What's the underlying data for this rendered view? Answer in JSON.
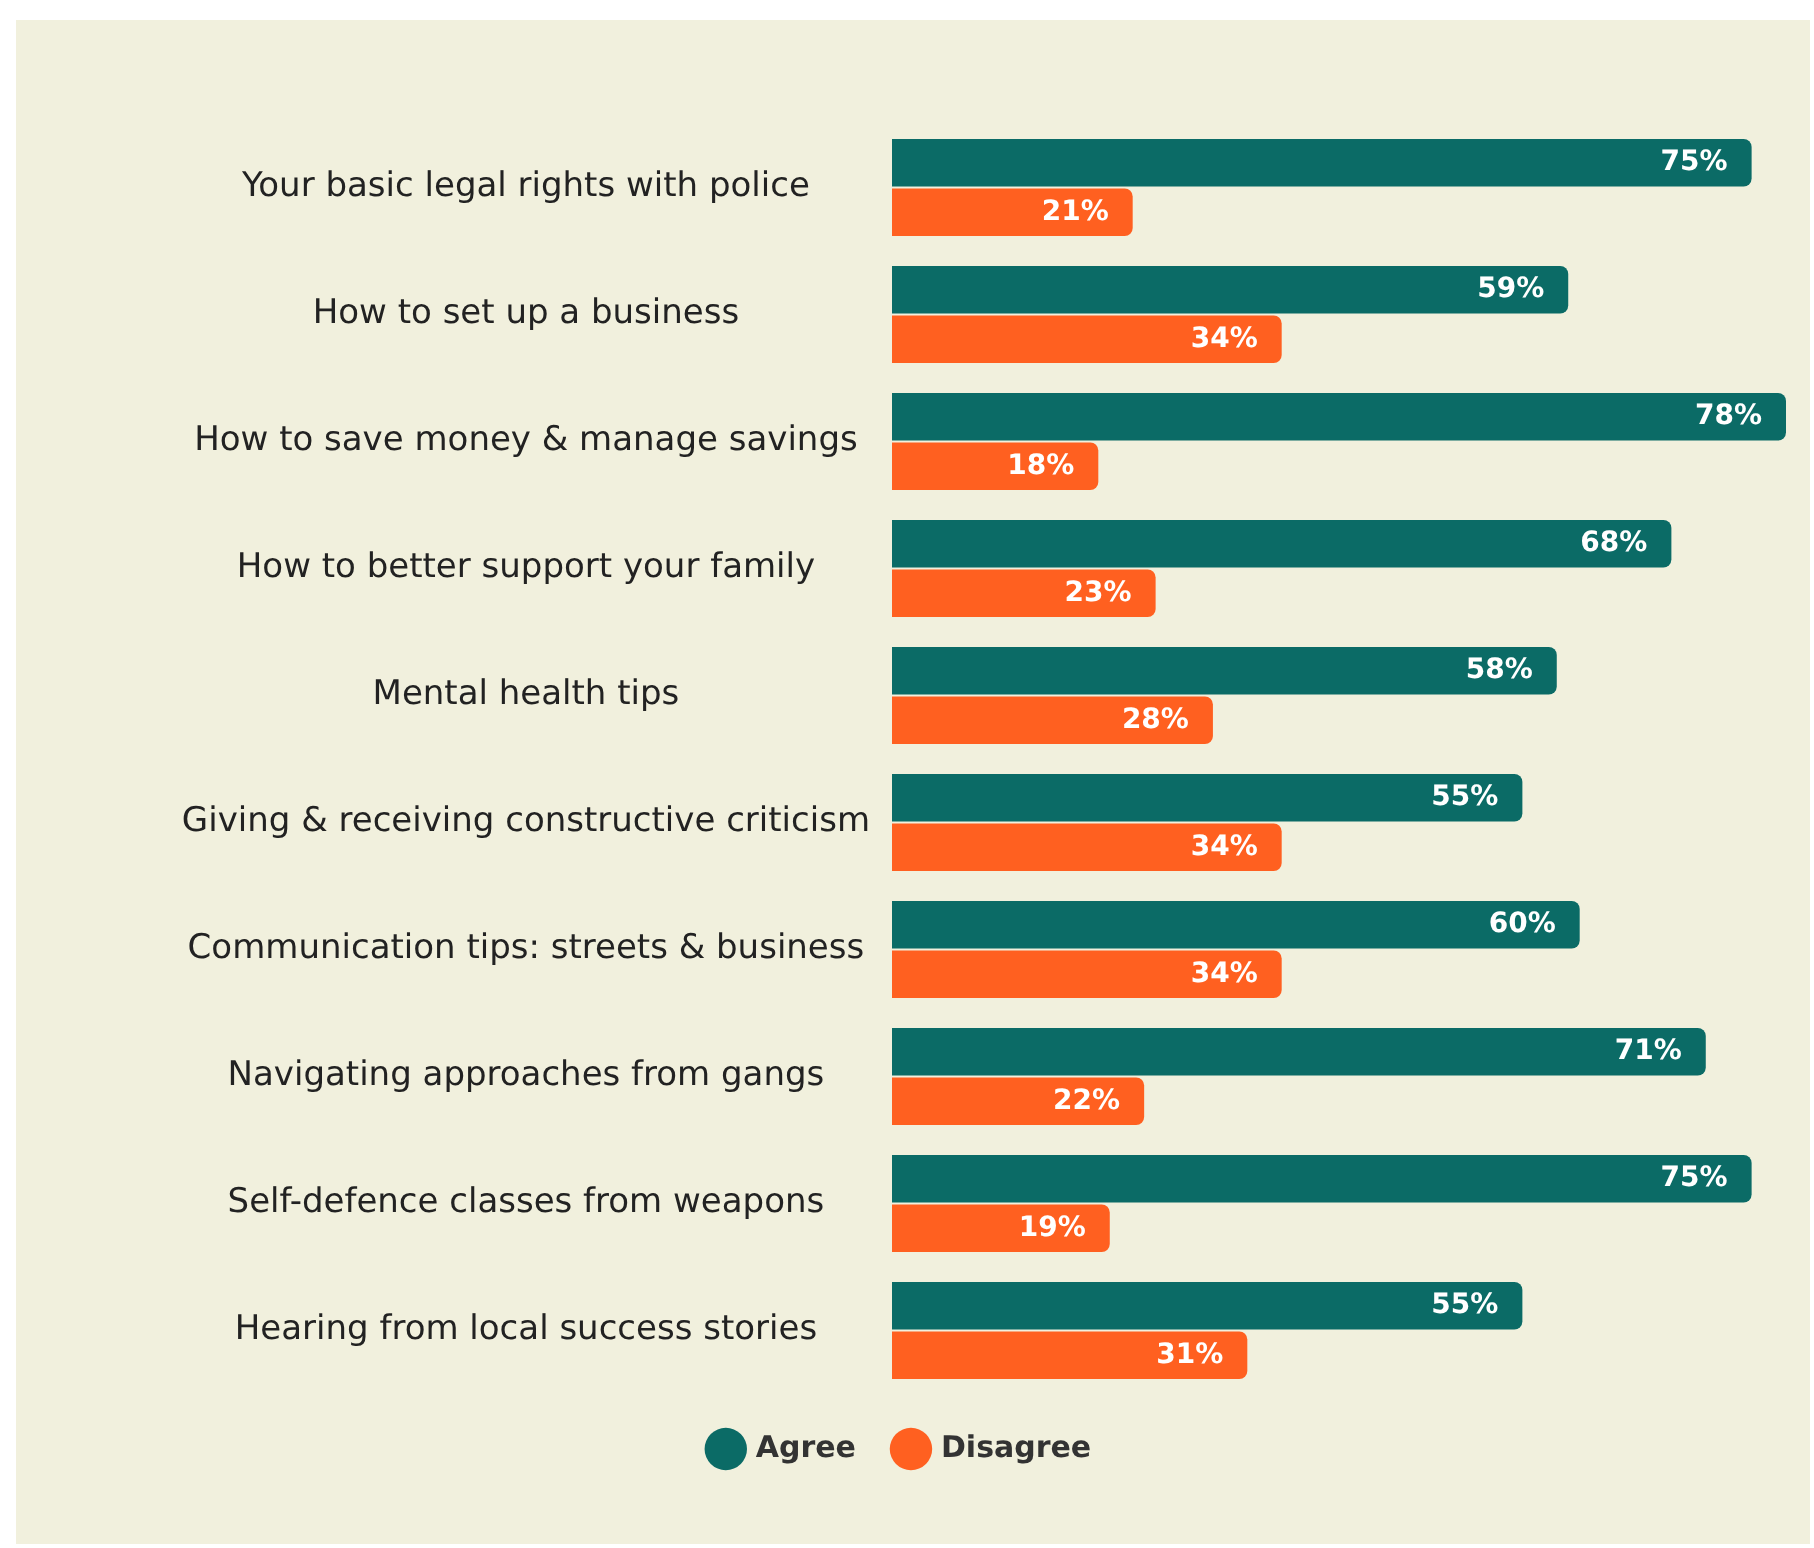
{
  "chart_data": {
    "type": "bar",
    "orientation": "horizontal",
    "categories": [
      "Your basic legal rights with police",
      "How to set up a business",
      "How to save money & manage savings",
      "How to better support your family",
      "Mental health tips",
      "Giving & receiving constructive criticism",
      "Communication tips: streets & business",
      "Navigating approaches from gangs",
      "Self-defence classes from weapons",
      "Hearing from local success stories"
    ],
    "series": [
      {
        "name": "Agree",
        "color": "#0b6b66",
        "values": [
          75,
          59,
          78,
          68,
          58,
          55,
          60,
          71,
          75,
          55
        ],
        "value_labels": [
          "75%",
          "59%",
          "78%",
          "68%",
          "58%",
          "55%",
          "60%",
          "71%",
          "75%",
          "55%"
        ]
      },
      {
        "name": "Disagree",
        "color": "#ff6020",
        "values": [
          21,
          34,
          18,
          23,
          28,
          34,
          34,
          22,
          19,
          31
        ],
        "value_labels": [
          "21%",
          "34%",
          "18%",
          "23%",
          "28%",
          "34%",
          "34%",
          "22%",
          "19%",
          "31%"
        ]
      }
    ],
    "legend": "bottom",
    "marker": "circle",
    "grid": false,
    "tick_labels": "y"
  }
}
